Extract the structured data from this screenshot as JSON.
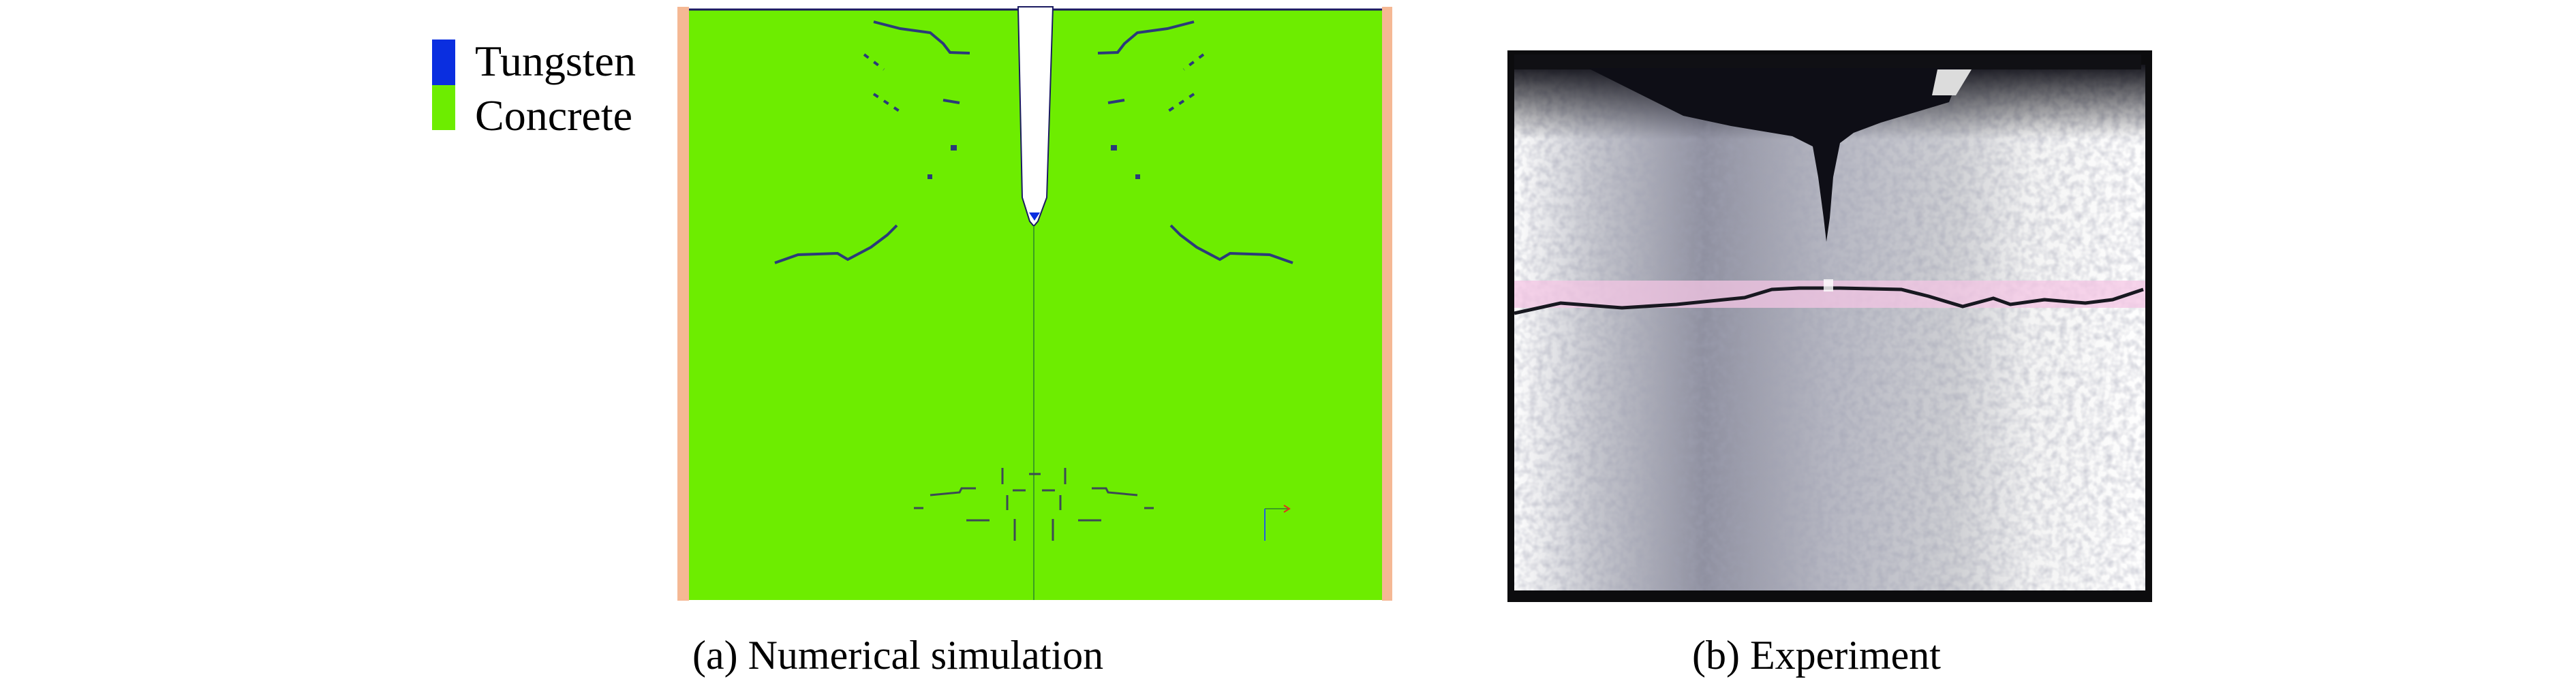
{
  "legend": {
    "items": [
      {
        "label": "Tungsten",
        "color": "#0a2ee0"
      },
      {
        "label": "Concrete",
        "color": "#6ded00"
      }
    ]
  },
  "panels": [
    {
      "caption": "(a) Numerical simulation",
      "boundary_color": "#f5b894",
      "target_color": "#6ded00"
    },
    {
      "caption": "(b) Experiment",
      "frame_color": "#0c0c0e",
      "marker_band_color": "#f4c6e4"
    }
  ]
}
